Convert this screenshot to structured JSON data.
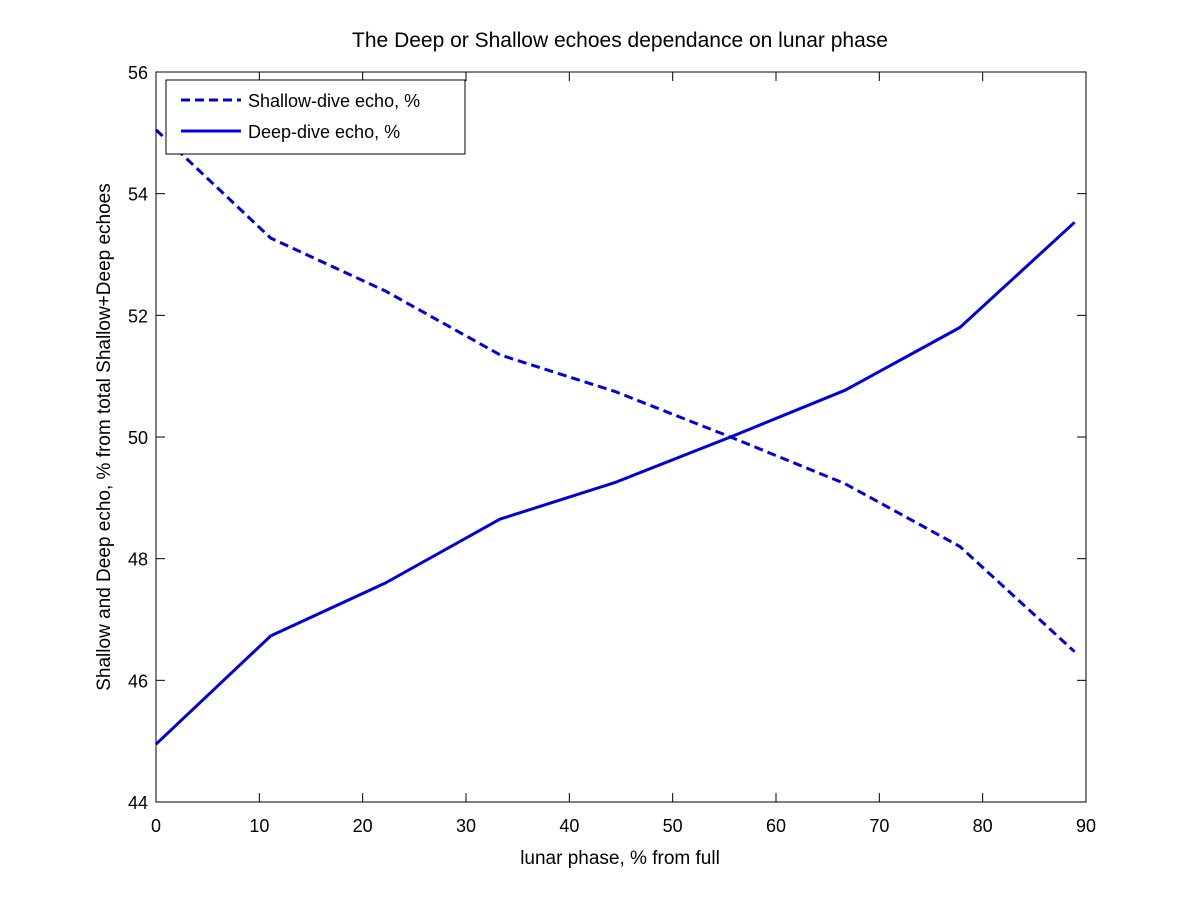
{
  "chart_data": {
    "type": "line",
    "title": "The Deep or Shallow echoes dependance on lunar phase",
    "xlabel": "lunar phase, % from full",
    "ylabel": "Shallow and Deep echo, % from total Shallow+Deep echoes",
    "xlim": [
      0,
      90
    ],
    "ylim": [
      44,
      56
    ],
    "xticks": [
      0,
      10,
      20,
      30,
      40,
      50,
      60,
      70,
      80,
      90
    ],
    "yticks": [
      44,
      46,
      48,
      50,
      52,
      54,
      56
    ],
    "grid": false,
    "legend_position": "top-left",
    "series": [
      {
        "name": "Shallow-dive echo, %",
        "style": "dashed",
        "color": "#0000dd",
        "x": [
          0,
          11.1,
          22.2,
          33.3,
          44.4,
          55.6,
          66.7,
          77.8,
          88.9
        ],
        "y": [
          55.05,
          53.27,
          52.4,
          51.35,
          50.75,
          50.0,
          49.23,
          48.2,
          46.47
        ]
      },
      {
        "name": "Deep-dive echo, %",
        "style": "solid",
        "color": "#0000dd",
        "x": [
          0,
          11.1,
          22.2,
          33.3,
          44.4,
          55.6,
          66.7,
          77.8,
          88.9
        ],
        "y": [
          44.95,
          46.73,
          47.6,
          48.65,
          49.25,
          50.0,
          50.77,
          51.8,
          53.53
        ]
      }
    ]
  }
}
